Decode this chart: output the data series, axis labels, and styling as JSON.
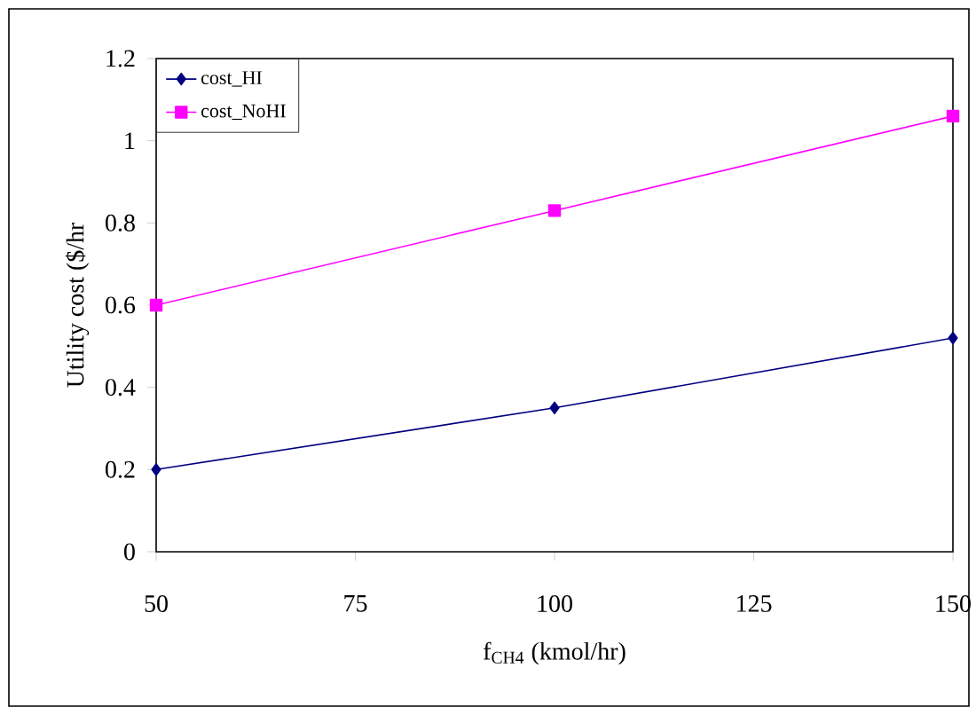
{
  "chart_data": {
    "type": "line",
    "xlabel": "f$_{CH4}$ (kmol/hr)",
    "ylabel": "Utility cost ($/hr",
    "x": [
      50,
      100,
      150
    ],
    "series": [
      {
        "name": "cost_HI",
        "color": "#000080",
        "marker": "diamond",
        "values": [
          0.2,
          0.35,
          0.52
        ]
      },
      {
        "name": "cost_NoHI",
        "color": "#ff00ff",
        "marker": "square",
        "values": [
          0.6,
          0.83,
          1.06
        ]
      }
    ],
    "xlim": [
      50,
      150
    ],
    "xticks": [
      50,
      75,
      100,
      125,
      150
    ],
    "ylim": [
      0,
      1.2
    ],
    "yticks": [
      0,
      0.2,
      0.4,
      0.6,
      0.8,
      1,
      1.2
    ],
    "grid": false,
    "legend": "top left",
    "line_style": "solid"
  }
}
